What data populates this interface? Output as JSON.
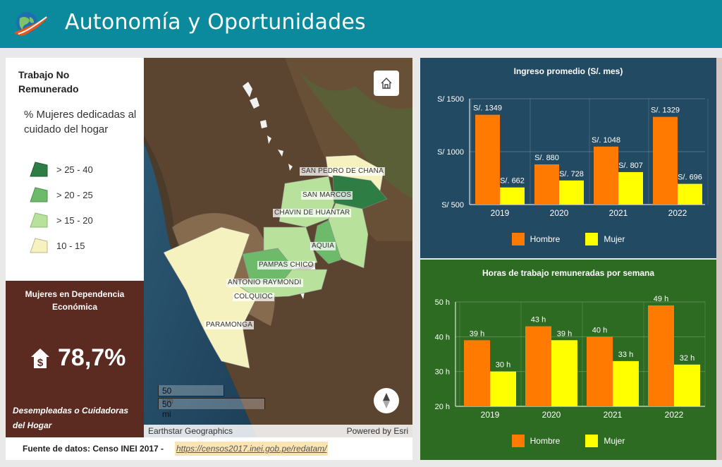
{
  "header": {
    "title": "Autonomía y Oportunidades",
    "logo_icon": "globe-icon"
  },
  "legend": {
    "title": "Trabajo No Remunerado",
    "subtitle": "% Mujeres dedicadas al cuidado del hogar",
    "items": [
      {
        "label": "> 25 - 40",
        "color": "#2e7d45"
      },
      {
        "label": "> 20 - 25",
        "color": "#6dbb6a"
      },
      {
        "label": "> 15 - 20",
        "color": "#b8e29c"
      },
      {
        "label": "10 - 15",
        "color": "#f6f2c0"
      }
    ]
  },
  "dependencia": {
    "title": "Mujeres en Dependencia Económica",
    "value": "78,7%",
    "footer": "Desempleadas o Cuidadoras del Hogar",
    "icon": "house-dollar-icon"
  },
  "map": {
    "labels": [
      "SAN PEDRO DE CHANA",
      "SAN MARCOS",
      "CHAVIN DE HUANTAR",
      "AQUIA",
      "PAMPAS CHICO",
      "ANTONIO RAYMONDI",
      "COLQUIOC",
      "PARAMONGA"
    ],
    "scale_km": "50 km",
    "scale_mi": "50 mi",
    "attribution_left": "Earthstar Geographics",
    "attribution_right": "Powered by Esri",
    "home_icon": "home-icon",
    "compass_icon": "compass-icon"
  },
  "source": {
    "label": "Fuente de datos: Censo INEI 2017 -",
    "link": "https://censos2017.inei.gob.pe/redatam/"
  },
  "colors": {
    "hombre": "#ff7a00",
    "mujer": "#ffff00"
  },
  "charts": {
    "legend_hombre": "Hombre",
    "legend_mujer": "Mujer"
  },
  "chart_data": [
    {
      "type": "bar",
      "title": "Ingreso promedio (S/. mes)",
      "categories": [
        "2019",
        "2020",
        "2021",
        "2022"
      ],
      "series": [
        {
          "name": "Hombre",
          "values": [
            1349,
            880,
            1048,
            1329
          ],
          "labels": [
            "S/. 1349",
            "S/. 880",
            "S/. 1048",
            "S/. 1329"
          ]
        },
        {
          "name": "Mujer",
          "values": [
            662,
            728,
            807,
            696
          ],
          "labels": [
            "S/. 662",
            "S/. 728",
            "S/. 807",
            "S/. 696"
          ]
        }
      ],
      "yticks": [
        "S/ 1500",
        "S/ 1000",
        "S/ 500"
      ],
      "ylim": [
        500,
        1500
      ],
      "grid": true,
      "legend": "bottom"
    },
    {
      "type": "bar",
      "title": "Horas de trabajo remuneradas por semana",
      "categories": [
        "2019",
        "2020",
        "2021",
        "2022"
      ],
      "series": [
        {
          "name": "Hombre",
          "values": [
            39,
            43,
            40,
            49
          ],
          "labels": [
            "39 h",
            "43 h",
            "40 h",
            "49 h"
          ]
        },
        {
          "name": "Mujer",
          "values": [
            30,
            39,
            33,
            32
          ],
          "labels": [
            "30 h",
            "39 h",
            "33 h",
            "32 h"
          ]
        }
      ],
      "yticks": [
        "50 h",
        "40 h",
        "30 h",
        "20 h"
      ],
      "ylim": [
        20,
        50
      ],
      "grid": true,
      "legend": "bottom"
    }
  ]
}
